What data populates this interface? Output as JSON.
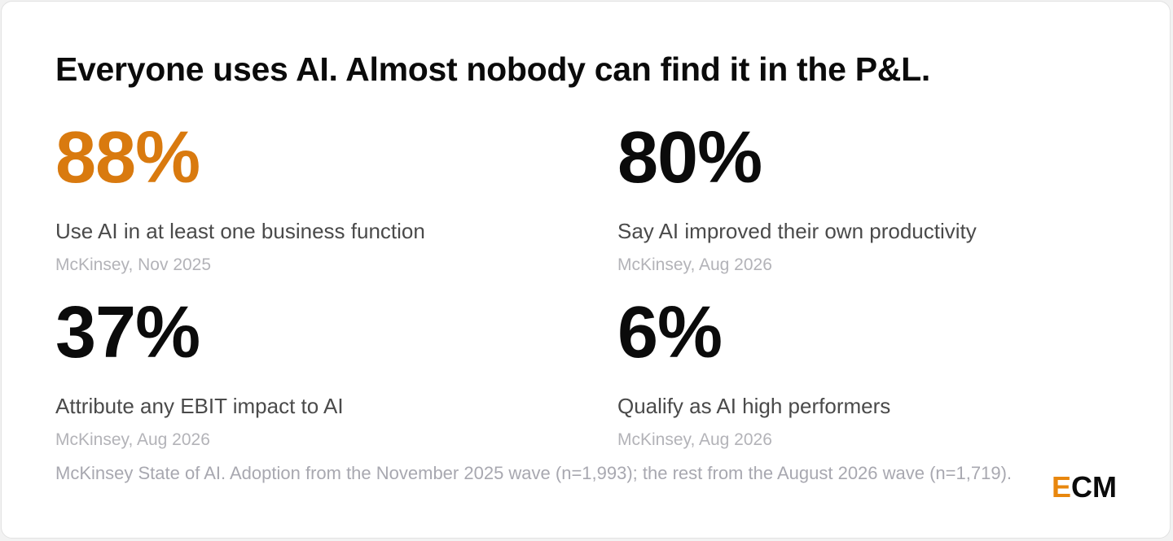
{
  "title": "Everyone uses AI. Almost nobody can find it in the P&L.",
  "stats": [
    {
      "value": "88%",
      "label": "Use AI in at least one business function",
      "source": "McKinsey, Nov 2025",
      "color": "#d97a0f"
    },
    {
      "value": "80%",
      "label": "Say AI improved their own productivity",
      "source": "McKinsey, Aug 2026",
      "color": "#0b0b0b"
    },
    {
      "value": "37%",
      "label": "Attribute any EBIT impact to AI",
      "source": "McKinsey, Aug 2026",
      "color": "#0b0b0b"
    },
    {
      "value": "6%",
      "label": "Qualify as AI high performers",
      "source": "McKinsey, Aug 2026",
      "color": "#0b0b0b"
    }
  ],
  "footnote": "McKinsey State of AI. Adoption from the November 2025 wave (n=1,993); the rest from the August 2026 wave (n=1,719).",
  "logo": "ECM",
  "logo_accent": "#e8870e"
}
